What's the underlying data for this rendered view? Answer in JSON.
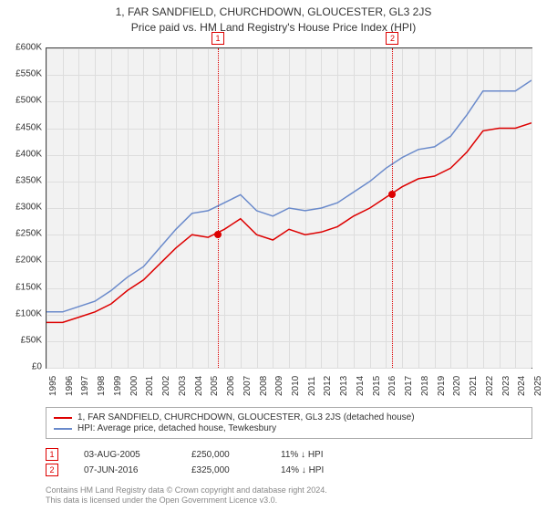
{
  "titles": {
    "address": "1, FAR SANDFIELD, CHURCHDOWN, GLOUCESTER, GL3 2JS",
    "subtitle": "Price paid vs. HM Land Registry's House Price Index (HPI)"
  },
  "chart": {
    "type": "line",
    "background_color": "#f2f2f2",
    "grid_color": "#dddddd",
    "border_color": "#444444",
    "ylim": [
      0,
      600
    ],
    "ytick_step": 50,
    "y_prefix": "£",
    "y_suffix": "K",
    "xlim": [
      1995,
      2025
    ],
    "xtick_step": 1,
    "label_fontsize": 10,
    "label_color": "#333333",
    "vlines": [
      {
        "x": 2005.6,
        "label": "1",
        "color": "#dd0000"
      },
      {
        "x": 2016.4,
        "label": "2",
        "color": "#dd0000"
      }
    ],
    "markers": [
      {
        "x": 2005.6,
        "y": 250,
        "color": "#dd0000"
      },
      {
        "x": 2016.4,
        "y": 325,
        "color": "#dd0000"
      }
    ],
    "series": [
      {
        "name": "property",
        "color": "#dd0000",
        "line_width": 1.5,
        "data": [
          [
            1995,
            85
          ],
          [
            1996,
            85
          ],
          [
            1997,
            95
          ],
          [
            1998,
            105
          ],
          [
            1999,
            120
          ],
          [
            2000,
            145
          ],
          [
            2001,
            165
          ],
          [
            2002,
            195
          ],
          [
            2003,
            225
          ],
          [
            2004,
            250
          ],
          [
            2005,
            245
          ],
          [
            2006,
            260
          ],
          [
            2007,
            280
          ],
          [
            2008,
            250
          ],
          [
            2009,
            240
          ],
          [
            2010,
            260
          ],
          [
            2011,
            250
          ],
          [
            2012,
            255
          ],
          [
            2013,
            265
          ],
          [
            2014,
            285
          ],
          [
            2015,
            300
          ],
          [
            2016,
            320
          ],
          [
            2017,
            340
          ],
          [
            2018,
            355
          ],
          [
            2019,
            360
          ],
          [
            2020,
            375
          ],
          [
            2021,
            405
          ],
          [
            2022,
            445
          ],
          [
            2023,
            450
          ],
          [
            2024,
            450
          ],
          [
            2025,
            460
          ]
        ]
      },
      {
        "name": "hpi",
        "color": "#6a8acb",
        "line_width": 1.5,
        "data": [
          [
            1995,
            105
          ],
          [
            1996,
            105
          ],
          [
            1997,
            115
          ],
          [
            1998,
            125
          ],
          [
            1999,
            145
          ],
          [
            2000,
            170
          ],
          [
            2001,
            190
          ],
          [
            2002,
            225
          ],
          [
            2003,
            260
          ],
          [
            2004,
            290
          ],
          [
            2005,
            295
          ],
          [
            2006,
            310
          ],
          [
            2007,
            325
          ],
          [
            2008,
            295
          ],
          [
            2009,
            285
          ],
          [
            2010,
            300
          ],
          [
            2011,
            295
          ],
          [
            2012,
            300
          ],
          [
            2013,
            310
          ],
          [
            2014,
            330
          ],
          [
            2015,
            350
          ],
          [
            2016,
            375
          ],
          [
            2017,
            395
          ],
          [
            2018,
            410
          ],
          [
            2019,
            415
          ],
          [
            2020,
            435
          ],
          [
            2021,
            475
          ],
          [
            2022,
            520
          ],
          [
            2023,
            520
          ],
          [
            2024,
            520
          ],
          [
            2025,
            540
          ]
        ]
      }
    ]
  },
  "legend": {
    "items": [
      {
        "color": "#dd0000",
        "label": "1, FAR SANDFIELD, CHURCHDOWN, GLOUCESTER, GL3 2JS (detached house)"
      },
      {
        "color": "#6a8acb",
        "label": "HPI: Average price, detached house, Tewkesbury"
      }
    ]
  },
  "sales": [
    {
      "marker": "1",
      "date": "03-AUG-2005",
      "price": "£250,000",
      "delta": "11% ↓ HPI"
    },
    {
      "marker": "2",
      "date": "07-JUN-2016",
      "price": "£325,000",
      "delta": "14% ↓ HPI"
    }
  ],
  "footer": {
    "line1": "Contains HM Land Registry data © Crown copyright and database right 2024.",
    "line2": "This data is licensed under the Open Government Licence v3.0."
  }
}
